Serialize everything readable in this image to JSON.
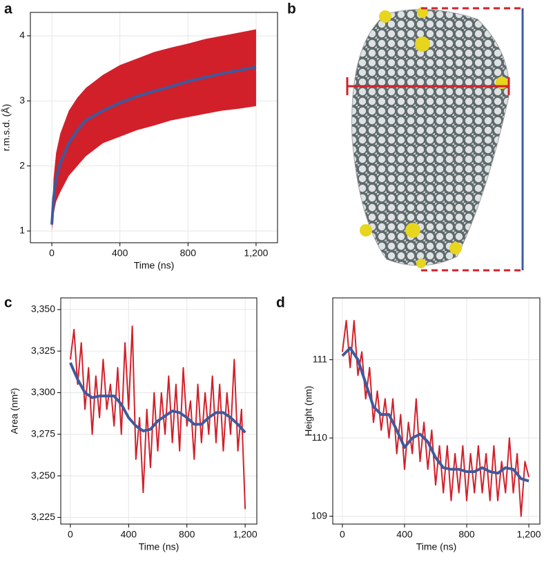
{
  "chart_data": [
    {
      "type": "line",
      "panel": "a",
      "xlabel": "Time (ns)",
      "ylabel": "r.m.s.d. (Å)",
      "xlim": [
        -126,
        1326
      ],
      "ylim": [
        0.82,
        4.36
      ],
      "xticks": [
        0,
        400,
        800,
        {
          "value": 1200,
          "label": "1,200"
        }
      ],
      "yticks": [
        1,
        2,
        3,
        4
      ],
      "grid": true,
      "band": {
        "color": "#d2202a",
        "x": [
          0,
          10,
          25,
          50,
          100,
          150,
          200,
          300,
          400,
          500,
          600,
          700,
          800,
          900,
          1000,
          1100,
          1200
        ],
        "lower": [
          1.0,
          1.25,
          1.45,
          1.6,
          1.85,
          2.0,
          2.15,
          2.35,
          2.45,
          2.55,
          2.62,
          2.7,
          2.75,
          2.8,
          2.85,
          2.88,
          2.92
        ],
        "upper": [
          1.1,
          1.8,
          2.2,
          2.5,
          2.85,
          3.05,
          3.2,
          3.4,
          3.55,
          3.65,
          3.75,
          3.82,
          3.88,
          3.95,
          4.0,
          4.05,
          4.1
        ]
      },
      "series": [
        {
          "color": "#3d5a9e",
          "x": [
            0,
            10,
            25,
            50,
            100,
            150,
            200,
            300,
            400,
            500,
            600,
            700,
            800,
            900,
            1000,
            1100,
            1200
          ],
          "values": [
            1.1,
            1.5,
            1.8,
            2.05,
            2.35,
            2.55,
            2.7,
            2.85,
            2.97,
            3.07,
            3.15,
            3.22,
            3.3,
            3.36,
            3.42,
            3.47,
            3.52
          ]
        }
      ]
    },
    {
      "type": "image",
      "panel": "b"
    },
    {
      "type": "line",
      "panel": "c",
      "xlabel": "Time (ns)",
      "ylabel": "Area (nm²)",
      "xlim": [
        -66,
        1280
      ],
      "ylim": [
        3221,
        3357
      ],
      "xticks": [
        0,
        400,
        800,
        {
          "value": 1200,
          "label": "1,200"
        }
      ],
      "yticks": [
        {
          "value": 3225,
          "label": "3,225"
        },
        {
          "value": 3250,
          "label": "3,250"
        },
        {
          "value": 3275,
          "label": "3,275"
        },
        {
          "value": 3300,
          "label": "3,300"
        },
        {
          "value": 3325,
          "label": "3,325"
        },
        {
          "value": 3350,
          "label": "3,350"
        }
      ],
      "grid": true,
      "series": [
        {
          "color": "#d2202a",
          "x": [
            0,
            25,
            50,
            75,
            100,
            125,
            150,
            175,
            200,
            225,
            250,
            275,
            300,
            325,
            350,
            375,
            400,
            425,
            450,
            475,
            500,
            525,
            550,
            575,
            600,
            625,
            650,
            675,
            700,
            725,
            750,
            775,
            800,
            825,
            850,
            875,
            900,
            925,
            950,
            975,
            1000,
            1025,
            1050,
            1075,
            1100,
            1125,
            1150,
            1175,
            1200
          ],
          "values": [
            3320,
            3338,
            3305,
            3330,
            3290,
            3315,
            3275,
            3310,
            3285,
            3320,
            3290,
            3305,
            3280,
            3315,
            3275,
            3330,
            3290,
            3340,
            3260,
            3285,
            3240,
            3290,
            3255,
            3300,
            3265,
            3300,
            3275,
            3310,
            3270,
            3305,
            3265,
            3315,
            3280,
            3295,
            3260,
            3305,
            3270,
            3300,
            3275,
            3310,
            3270,
            3305,
            3265,
            3300,
            3275,
            3320,
            3265,
            3290,
            3230
          ]
        },
        {
          "color": "#3d5a9e",
          "x": [
            0,
            50,
            100,
            150,
            200,
            300,
            350,
            400,
            450,
            500,
            550,
            600,
            700,
            750,
            800,
            850,
            900,
            950,
            1000,
            1050,
            1100,
            1150,
            1200
          ],
          "values": [
            3318,
            3308,
            3300,
            3297,
            3298,
            3298,
            3293,
            3285,
            3280,
            3277,
            3278,
            3283,
            3289,
            3288,
            3285,
            3281,
            3281,
            3285,
            3288,
            3288,
            3285,
            3281,
            3276
          ]
        }
      ]
    },
    {
      "type": "line",
      "panel": "d",
      "xlabel": "Time (ns)",
      "ylabel": "Height (nm)",
      "xlim": [
        -62,
        1271
      ],
      "ylim": [
        108.9,
        111.79
      ],
      "xticks": [
        0,
        400,
        800,
        {
          "value": 1200,
          "label": "1,200"
        }
      ],
      "yticks": [
        109,
        110,
        111
      ],
      "grid": true,
      "series": [
        {
          "color": "#d2202a",
          "x": [
            0,
            25,
            50,
            75,
            100,
            125,
            150,
            175,
            200,
            225,
            250,
            275,
            300,
            325,
            350,
            375,
            400,
            425,
            450,
            475,
            500,
            525,
            550,
            575,
            600,
            625,
            650,
            675,
            700,
            725,
            750,
            775,
            800,
            825,
            850,
            875,
            900,
            925,
            950,
            975,
            1000,
            1025,
            1050,
            1075,
            1100,
            1125,
            1150,
            1175,
            1200
          ],
          "values": [
            111.1,
            111.5,
            110.9,
            111.5,
            110.8,
            111.1,
            110.5,
            110.9,
            110.2,
            110.6,
            110.1,
            110.5,
            110.0,
            110.5,
            109.8,
            110.3,
            109.6,
            110.2,
            109.8,
            110.5,
            109.7,
            110.2,
            109.6,
            110.1,
            109.4,
            109.9,
            109.3,
            109.9,
            109.2,
            109.8,
            109.3,
            109.9,
            109.2,
            109.8,
            109.3,
            109.9,
            109.3,
            109.8,
            109.2,
            109.9,
            109.2,
            109.7,
            109.3,
            110.0,
            109.3,
            109.8,
            109.0,
            109.7,
            109.5
          ]
        },
        {
          "color": "#3d5a9e",
          "x": [
            0,
            50,
            100,
            150,
            200,
            250,
            300,
            350,
            400,
            450,
            500,
            550,
            600,
            650,
            700,
            750,
            800,
            850,
            900,
            950,
            1000,
            1050,
            1100,
            1150,
            1200
          ],
          "values": [
            111.05,
            111.15,
            111.0,
            110.7,
            110.4,
            110.3,
            110.3,
            110.1,
            109.88,
            110.0,
            110.05,
            109.95,
            109.75,
            109.62,
            109.6,
            109.6,
            109.57,
            109.57,
            109.62,
            109.57,
            109.55,
            109.62,
            109.6,
            109.48,
            109.45
          ]
        }
      ]
    }
  ]
}
